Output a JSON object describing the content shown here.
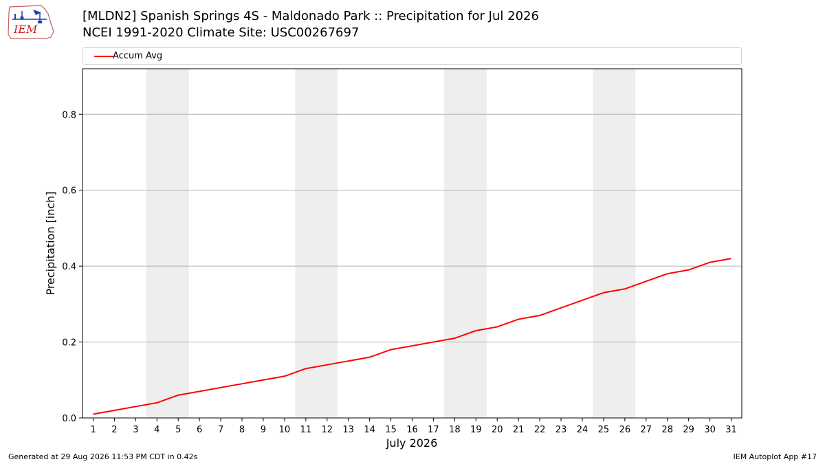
{
  "header": {
    "title_line1": "[MLDN2] Spanish Springs 4S - Maldonado Park :: Precipitation for Jul 2026",
    "title_line2": "NCEI 1991-2020 Climate Site: USC00267697",
    "logo_text": "IEM",
    "logo_icon": "iem-weather-station-logo-icon"
  },
  "footer": {
    "left": "Generated at 29 Aug 2026 11:53 PM CDT in 0.42s",
    "right": "IEM Autoplot App #17"
  },
  "chart_data": {
    "type": "line",
    "title": "[MLDN2] Spanish Springs 4S - Maldonado Park :: Precipitation for Jul 2026",
    "subtitle": "NCEI 1991-2020 Climate Site: USC00267697",
    "xlabel": "July 2026",
    "ylabel": "Precipitation [inch]",
    "x": [
      1,
      2,
      3,
      4,
      5,
      6,
      7,
      8,
      9,
      10,
      11,
      12,
      13,
      14,
      15,
      16,
      17,
      18,
      19,
      20,
      21,
      22,
      23,
      24,
      25,
      26,
      27,
      28,
      29,
      30,
      31
    ],
    "series": [
      {
        "name": "Accum Avg",
        "color": "#ff0000",
        "values": [
          0.01,
          0.02,
          0.03,
          0.04,
          0.06,
          0.07,
          0.08,
          0.09,
          0.1,
          0.11,
          0.13,
          0.14,
          0.15,
          0.16,
          0.18,
          0.19,
          0.2,
          0.21,
          0.23,
          0.24,
          0.26,
          0.27,
          0.29,
          0.31,
          0.33,
          0.34,
          0.36,
          0.38,
          0.39,
          0.41,
          0.42
        ]
      }
    ],
    "xlim": [
      0.5,
      31.5
    ],
    "ylim": [
      0,
      0.92
    ],
    "yticks": [
      0.0,
      0.2,
      0.4,
      0.6,
      0.8
    ],
    "ytick_labels": [
      "0.0",
      "0.2",
      "0.4",
      "0.6",
      "0.8"
    ],
    "xticks": [
      1,
      2,
      3,
      4,
      5,
      6,
      7,
      8,
      9,
      10,
      11,
      12,
      13,
      14,
      15,
      16,
      17,
      18,
      19,
      20,
      21,
      22,
      23,
      24,
      25,
      26,
      27,
      28,
      29,
      30,
      31
    ],
    "xtick_labels": [
      "1",
      "2",
      "3",
      "4",
      "5",
      "6",
      "7",
      "8",
      "9",
      "10",
      "11",
      "12",
      "13",
      "14",
      "15",
      "16",
      "17",
      "18",
      "19",
      "20",
      "21",
      "22",
      "23",
      "24",
      "25",
      "26",
      "27",
      "28",
      "29",
      "30",
      "31"
    ],
    "weekend_bands": [
      [
        3.5,
        5.5
      ],
      [
        10.5,
        12.5
      ],
      [
        17.5,
        19.5
      ],
      [
        24.5,
        26.5
      ]
    ],
    "band_color": "#eeeeee",
    "grid": "horizontal",
    "grid_color": "#b0b0b0",
    "legend": "top"
  }
}
